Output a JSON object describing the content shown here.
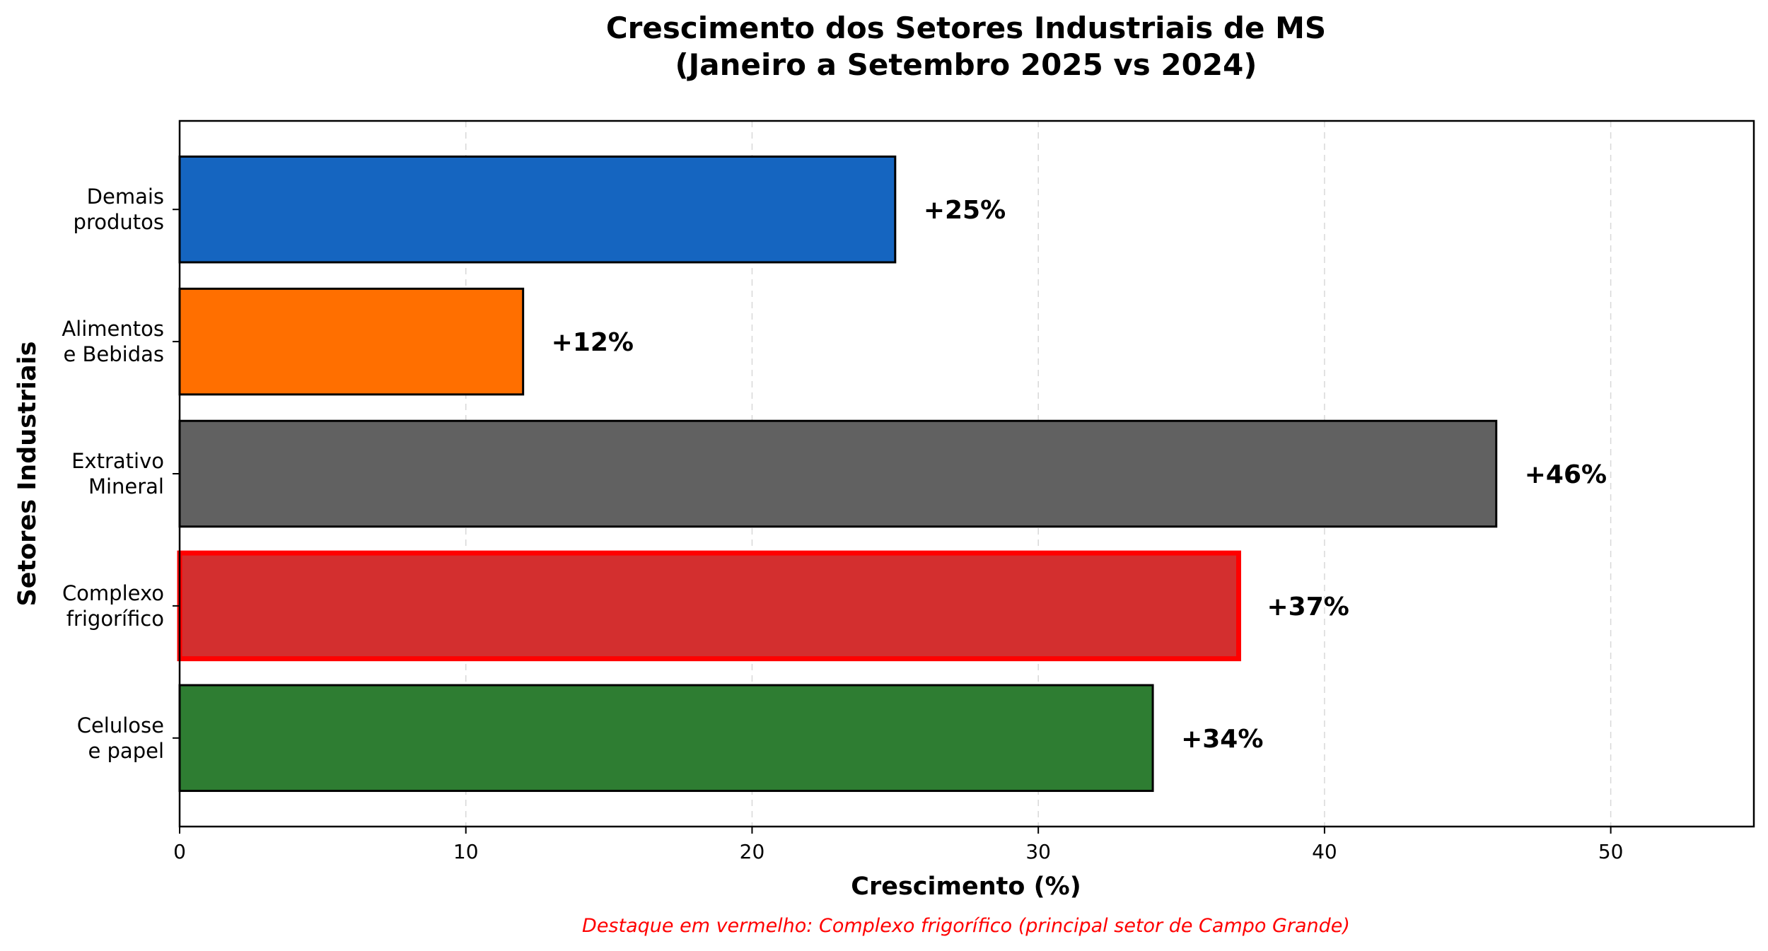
{
  "chart_data": {
    "type": "bar",
    "orientation": "horizontal",
    "title_lines": [
      "Crescimento dos Setores Industriais de MS",
      "(Janeiro a Setembro 2025 vs 2024)"
    ],
    "xlabel": "Crescimento (%)",
    "ylabel": "Setores Industriais",
    "xlim": [
      0,
      55
    ],
    "xticks": [
      0,
      10,
      20,
      30,
      40,
      50
    ],
    "grid": "x, dashed",
    "categories": [
      {
        "label_lines": [
          "Celulose",
          "e papel"
        ],
        "value": 34,
        "data_label": "+34%",
        "color": "#2e7d32",
        "highlight": false
      },
      {
        "label_lines": [
          "Complexo",
          "frigorífico"
        ],
        "value": 37,
        "data_label": "+37%",
        "color": "#d32f2f",
        "highlight": true
      },
      {
        "label_lines": [
          "Extrativo",
          "Mineral"
        ],
        "value": 46,
        "data_label": "+46%",
        "color": "#616161",
        "highlight": false
      },
      {
        "label_lines": [
          "Alimentos",
          "e Bebidas"
        ],
        "value": 12,
        "data_label": "+12%",
        "color": "#ff6f00",
        "highlight": false
      },
      {
        "label_lines": [
          "Demais",
          "produtos"
        ],
        "value": 25,
        "data_label": "+25%",
        "color": "#1565c0",
        "highlight": false
      }
    ],
    "highlight_color": "#ff0000",
    "note": "Destaque em vermelho: Complexo frigorífico (principal setor de Campo Grande)"
  }
}
